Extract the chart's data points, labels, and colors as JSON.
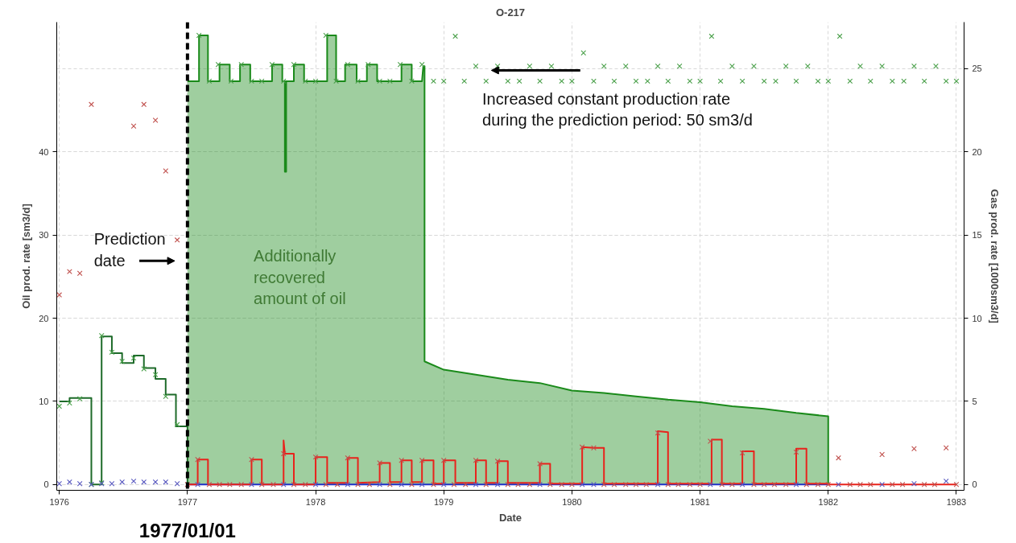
{
  "chart_data": {
    "type": "line",
    "title": "O-217",
    "xlabel": "Date",
    "ylabel": "Oil prod. rate [sm3/d]",
    "y2label": "Gas prod. rate [1000sm3/d]",
    "xlim": [
      1975.98,
      1983.06
    ],
    "xticks": [
      1976,
      1977,
      1978,
      1979,
      1980,
      1981,
      1982,
      1983
    ],
    "ylim": [
      -0.7,
      55.6
    ],
    "yticks": [
      0,
      10,
      20,
      30,
      40
    ],
    "y2lim": [
      -0.35,
      27.8
    ],
    "y2ticks": [
      0,
      5,
      10,
      15,
      20,
      25
    ],
    "grid": true,
    "series": [
      {
        "color": "#1e6b2a",
        "x": [
          1976.0,
          1976.08,
          1976.08,
          1976.25,
          1976.25,
          1976.33,
          1976.33,
          1976.41,
          1976.41,
          1976.49,
          1976.49,
          1976.58,
          1976.58,
          1976.66,
          1976.66,
          1976.75,
          1976.75,
          1976.83,
          1976.83,
          1976.91,
          1976.91,
          1977.0,
          1977.0
        ],
        "values": [
          10.0,
          10.0,
          10.4,
          10.4,
          0,
          0,
          17.8,
          17.8,
          15.8,
          15.8,
          14.6,
          14.6,
          15.5,
          15.5,
          14.0,
          14.0,
          12.7,
          12.7,
          10.8,
          10.8,
          7.0,
          7.0,
          0
        ]
      },
      {
        "type": "area",
        "color": "#1a8a1a",
        "x": [
          1977.0,
          1977.09,
          1977.09,
          1977.16,
          1977.16,
          1977.25,
          1977.25,
          1977.33,
          1977.33,
          1977.41,
          1977.41,
          1977.49,
          1977.49,
          1977.66,
          1977.66,
          1977.74,
          1977.74,
          1977.76,
          1977.76,
          1977.77,
          1977.77,
          1977.83,
          1977.83,
          1977.91,
          1977.91,
          1978.09,
          1978.09,
          1978.16,
          1978.16,
          1978.23,
          1978.23,
          1978.32,
          1978.32,
          1978.4,
          1978.4,
          1978.48,
          1978.48,
          1978.67,
          1978.67,
          1978.75,
          1978.75,
          1978.83,
          1978.84,
          1978.85,
          1978.85,
          1979.0,
          1979.25,
          1979.5,
          1979.75,
          1980.0,
          1980.25,
          1980.5,
          1980.75,
          1981.0,
          1981.25,
          1981.5,
          1981.75,
          1982.0,
          1982.0
        ],
        "values": [
          48.5,
          48.5,
          54.0,
          54.0,
          48.5,
          48.5,
          50.5,
          50.5,
          48.5,
          48.5,
          50.5,
          50.5,
          48.5,
          48.5,
          50.5,
          50.5,
          48.5,
          48.5,
          37.6,
          37.6,
          48.5,
          48.5,
          50.5,
          50.5,
          48.5,
          48.5,
          54.0,
          54.0,
          48.5,
          48.5,
          50.5,
          50.5,
          48.5,
          48.5,
          50.5,
          50.5,
          48.5,
          48.5,
          50.5,
          50.5,
          48.5,
          48.5,
          50.3,
          50.3,
          14.8,
          13.8,
          13.2,
          12.6,
          12.2,
          11.3,
          11.0,
          10.6,
          10.2,
          9.9,
          9.4,
          9.1,
          8.6,
          8.2,
          0
        ]
      },
      {
        "color": "#2030c8",
        "x": [
          1977.0,
          1982.0
        ],
        "values": [
          0,
          0
        ]
      },
      {
        "color": "#e8231c",
        "x": [
          1977.0,
          1977.08,
          1977.08,
          1977.16,
          1977.16,
          1977.5,
          1977.5,
          1977.58,
          1977.58,
          1977.75,
          1977.75,
          1977.76,
          1977.83,
          1977.83,
          1978.0,
          1978.0,
          1978.09,
          1978.09,
          1978.25,
          1978.25,
          1978.33,
          1978.33,
          1978.5,
          1978.5,
          1978.58,
          1978.58,
          1978.67,
          1978.67,
          1978.75,
          1978.75,
          1978.83,
          1978.83,
          1978.92,
          1978.92,
          1979.0,
          1979.0,
          1979.09,
          1979.09,
          1979.25,
          1979.25,
          1979.33,
          1979.33,
          1979.42,
          1979.42,
          1979.5,
          1979.5,
          1979.75,
          1979.75,
          1979.83,
          1979.83,
          1980.08,
          1980.08,
          1980.17,
          1980.25,
          1980.25,
          1980.67,
          1980.67,
          1980.75,
          1980.75,
          1981.09,
          1981.09,
          1981.17,
          1981.17,
          1981.33,
          1981.33,
          1981.42,
          1981.42,
          1981.75,
          1981.75,
          1981.83,
          1981.83,
          1982.0,
          1982.0,
          1983.0
        ],
        "values": [
          0,
          0,
          3.0,
          3.0,
          0,
          0,
          3.0,
          3.0,
          0,
          0,
          5.3,
          3.7,
          3.7,
          0,
          0,
          3.3,
          3.3,
          0.2,
          0.2,
          3.2,
          3.2,
          0.2,
          0.3,
          2.6,
          2.6,
          0.3,
          0.3,
          2.9,
          2.9,
          0.3,
          0.3,
          2.9,
          2.9,
          0.1,
          0.1,
          2.9,
          2.9,
          0.2,
          0.2,
          2.9,
          2.9,
          0.2,
          0.2,
          2.8,
          2.8,
          0.2,
          0.2,
          2.5,
          2.5,
          0.1,
          0.1,
          4.5,
          4.4,
          4.4,
          0.1,
          0.1,
          6.4,
          6.3,
          0.1,
          0.1,
          5.4,
          5.4,
          0.1,
          0.1,
          4.0,
          4.0,
          0.1,
          0.1,
          4.3,
          4.3,
          0.1,
          0.1,
          0,
          0
        ]
      },
      {
        "type": "scatter",
        "marker": "cross",
        "color": "#4aa04a",
        "x": [
          1976.0,
          1976.08,
          1976.16,
          1976.25,
          1976.33,
          1976.33,
          1976.41,
          1976.49,
          1976.58,
          1976.66,
          1976.75,
          1976.83,
          1976.92,
          1977.09,
          1977.17,
          1977.24,
          1977.34,
          1977.42,
          1977.5,
          1977.58,
          1977.66,
          1977.75,
          1977.83,
          1977.92,
          1978.0,
          1978.08,
          1978.16,
          1978.25,
          1978.33,
          1978.41,
          1978.5,
          1978.58,
          1978.66,
          1978.75,
          1978.83,
          1978.92,
          1979.0,
          1979.09,
          1979.16,
          1979.25,
          1979.33,
          1979.42,
          1979.5,
          1979.59,
          1979.67,
          1979.75,
          1979.84,
          1979.92,
          1980.0,
          1980.09,
          1980.17,
          1980.25,
          1980.33,
          1980.42,
          1980.5,
          1980.59,
          1980.67,
          1980.75,
          1980.84,
          1980.92,
          1981.0,
          1981.09,
          1981.16,
          1981.25,
          1981.33,
          1981.42,
          1981.5,
          1981.59,
          1981.67,
          1981.75,
          1981.84,
          1981.92,
          1982.0,
          1982.09,
          1982.17,
          1982.25,
          1982.33,
          1982.42,
          1982.5,
          1982.59,
          1982.67,
          1982.75,
          1982.84,
          1982.92,
          1983.0
        ],
        "values": [
          9.4,
          9.8,
          10.3,
          0,
          0.2,
          17.9,
          15.9,
          14.8,
          15.2,
          13.9,
          13.2,
          10.6,
          7.2,
          54.0,
          48.5,
          50.5,
          48.5,
          50.5,
          48.5,
          48.5,
          50.5,
          48.5,
          50.5,
          48.5,
          48.5,
          54.0,
          48.5,
          50.5,
          48.5,
          50.5,
          48.5,
          48.5,
          50.5,
          48.5,
          50.5,
          48.5,
          48.5,
          53.9,
          48.5,
          50.3,
          48.5,
          50.3,
          48.5,
          48.5,
          50.3,
          48.5,
          50.3,
          48.5,
          48.5,
          51.9,
          48.5,
          50.3,
          48.5,
          50.3,
          48.5,
          48.5,
          50.3,
          48.5,
          50.3,
          48.5,
          48.5,
          53.9,
          48.5,
          50.3,
          48.5,
          50.3,
          48.5,
          48.5,
          50.3,
          48.5,
          50.3,
          48.5,
          48.5,
          53.9,
          48.5,
          50.3,
          48.5,
          50.3,
          48.5,
          48.5,
          50.3,
          48.5,
          50.3,
          48.5,
          48.5
        ]
      },
      {
        "type": "scatter",
        "marker": "cross",
        "color": "#c0504d",
        "x": [
          1976.0,
          1976.08,
          1976.16,
          1976.25,
          1976.58,
          1976.66,
          1976.75,
          1976.83,
          1976.92,
          1977.0,
          1977.08,
          1977.17,
          1977.25,
          1977.33,
          1977.42,
          1977.5,
          1977.58,
          1977.67,
          1977.75,
          1977.83,
          1977.92,
          1978.0,
          1978.08,
          1978.17,
          1978.25,
          1978.33,
          1978.42,
          1978.5,
          1978.58,
          1978.67,
          1978.75,
          1978.83,
          1978.92,
          1979.0,
          1979.08,
          1979.17,
          1979.25,
          1979.33,
          1979.42,
          1979.5,
          1979.58,
          1979.67,
          1979.75,
          1979.83,
          1979.92,
          1980.0,
          1980.08,
          1980.17,
          1980.25,
          1980.33,
          1980.42,
          1980.5,
          1980.58,
          1980.67,
          1980.75,
          1980.83,
          1980.92,
          1981.0,
          1981.08,
          1981.17,
          1981.25,
          1981.33,
          1981.42,
          1981.5,
          1981.58,
          1981.67,
          1981.75,
          1981.83,
          1981.92,
          1982.0,
          1982.08,
          1982.17,
          1982.25,
          1982.33,
          1982.42,
          1982.5,
          1982.58,
          1982.67,
          1982.75,
          1982.83,
          1982.92,
          1983.0
        ],
        "values": [
          22.8,
          25.6,
          25.4,
          45.7,
          43.1,
          45.7,
          43.8,
          37.7,
          29.4,
          0,
          3.0,
          0,
          0,
          0,
          0,
          3.0,
          0,
          0,
          3.7,
          0,
          0,
          3.3,
          0,
          0,
          3.2,
          0,
          0,
          2.6,
          0,
          2.9,
          0,
          2.9,
          0,
          2.9,
          0,
          0,
          2.9,
          0,
          2.8,
          0,
          0,
          0,
          2.5,
          0,
          0,
          0,
          4.5,
          4.4,
          0,
          0,
          0,
          0,
          0,
          6.2,
          0,
          0,
          0,
          0,
          5.2,
          0,
          0,
          3.8,
          0,
          0,
          0,
          0,
          3.9,
          0,
          0,
          0,
          3.2,
          0,
          0,
          0,
          3.6,
          0,
          0,
          4.3,
          0,
          0,
          4.4,
          0
        ]
      },
      {
        "type": "scatter",
        "marker": "cross",
        "color": "#5a5ac0",
        "x": [
          1976.0,
          1976.08,
          1976.16,
          1976.25,
          1976.33,
          1976.41,
          1976.49,
          1976.58,
          1976.66,
          1976.75,
          1976.83,
          1976.92,
          1977.08,
          1977.5,
          1977.75,
          1978.0,
          1978.25,
          1978.5,
          1978.67,
          1978.83,
          1979.0,
          1979.25,
          1979.42,
          1979.75,
          1980.08,
          1980.17,
          1980.67,
          1981.08,
          1981.33,
          1981.75,
          1982.08,
          1982.42,
          1982.67,
          1982.92
        ],
        "values": [
          0.1,
          0.3,
          0.1,
          0,
          0.1,
          0.1,
          0.3,
          0.4,
          0.3,
          0.3,
          0.3,
          0.1,
          0,
          0,
          0,
          0,
          0,
          0,
          0,
          0,
          0,
          0,
          0,
          0,
          0,
          0,
          0,
          0,
          0,
          0,
          0,
          0,
          0.1,
          0.4
        ]
      }
    ],
    "ref_lines": [
      {
        "axis": "x",
        "value": 1977,
        "label": "1977/01/01",
        "color": "#000000",
        "line_style": "dashed"
      }
    ],
    "annotations": [
      "Prediction\ndate",
      "Additionally\nrecovered\namount of oil",
      "Increased constant production rate\nduring the prediction period: 50 sm3/d"
    ]
  }
}
